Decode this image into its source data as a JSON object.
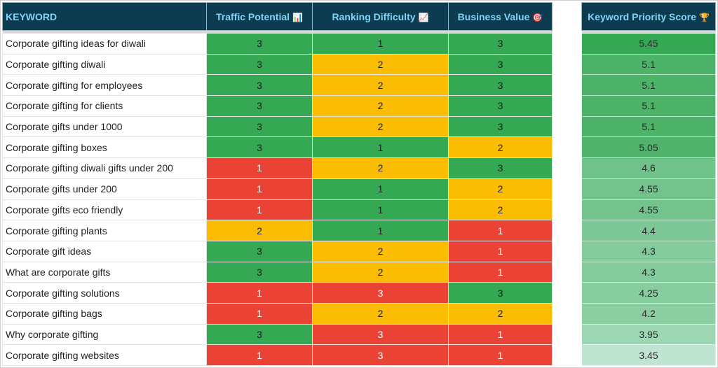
{
  "colors": {
    "high": "#34a853",
    "medium": "#fbbc04",
    "low": "#ea4335",
    "score_max": "#34a853",
    "score_min": "#bfe5d2",
    "header_bg": "#0d3b50",
    "header_text": "#82d4f5"
  },
  "headers": {
    "keyword": "KEYWORD",
    "traffic": "Traffic Potential",
    "traffic_icon": "📊",
    "ranking": "Ranking Difficulty",
    "ranking_icon": "📈",
    "business": "Business Value",
    "business_icon": "🎯",
    "score": "Keyword Priority Score",
    "score_icon": "🏆"
  },
  "rows": [
    {
      "keyword": "Corporate gifting ideas for diwali",
      "traffic": 3,
      "ranking": 1,
      "business": 3,
      "score": "5.45"
    },
    {
      "keyword": "Corporate gifting diwali",
      "traffic": 3,
      "ranking": 2,
      "business": 3,
      "score": "5.1"
    },
    {
      "keyword": "Corporate gifting for employees",
      "traffic": 3,
      "ranking": 2,
      "business": 3,
      "score": "5.1"
    },
    {
      "keyword": "Corporate gifting for clients",
      "traffic": 3,
      "ranking": 2,
      "business": 3,
      "score": "5.1"
    },
    {
      "keyword": "Corporate gifts under 1000",
      "traffic": 3,
      "ranking": 2,
      "business": 3,
      "score": "5.1"
    },
    {
      "keyword": "Corporate gifting boxes",
      "traffic": 3,
      "ranking": 1,
      "business": 2,
      "score": "5.05"
    },
    {
      "keyword": "Corporate gifting diwali gifts under 200",
      "traffic": 1,
      "ranking": 2,
      "business": 3,
      "score": "4.6"
    },
    {
      "keyword": "Corporate gifts under 200",
      "traffic": 1,
      "ranking": 1,
      "business": 2,
      "score": "4.55"
    },
    {
      "keyword": "Corporate gifts eco friendly",
      "traffic": 1,
      "ranking": 1,
      "business": 2,
      "score": "4.55"
    },
    {
      "keyword": "Corporate gifting plants",
      "traffic": 2,
      "ranking": 1,
      "business": 1,
      "score": "4.4"
    },
    {
      "keyword": "Corporate gift ideas",
      "traffic": 3,
      "ranking": 2,
      "business": 1,
      "score": "4.3"
    },
    {
      "keyword": "What are corporate gifts",
      "traffic": 3,
      "ranking": 2,
      "business": 1,
      "score": "4.3"
    },
    {
      "keyword": "Corporate gifting solutions",
      "traffic": 1,
      "ranking": 3,
      "business": 3,
      "score": "4.25"
    },
    {
      "keyword": "Corporate gifting bags",
      "traffic": 1,
      "ranking": 2,
      "business": 2,
      "score": "4.2"
    },
    {
      "keyword": "Why corporate gifting",
      "traffic": 3,
      "ranking": 3,
      "business": 1,
      "score": "3.95"
    },
    {
      "keyword": "Corporate gifting websites",
      "traffic": 1,
      "ranking": 3,
      "business": 1,
      "score": "3.45"
    }
  ]
}
